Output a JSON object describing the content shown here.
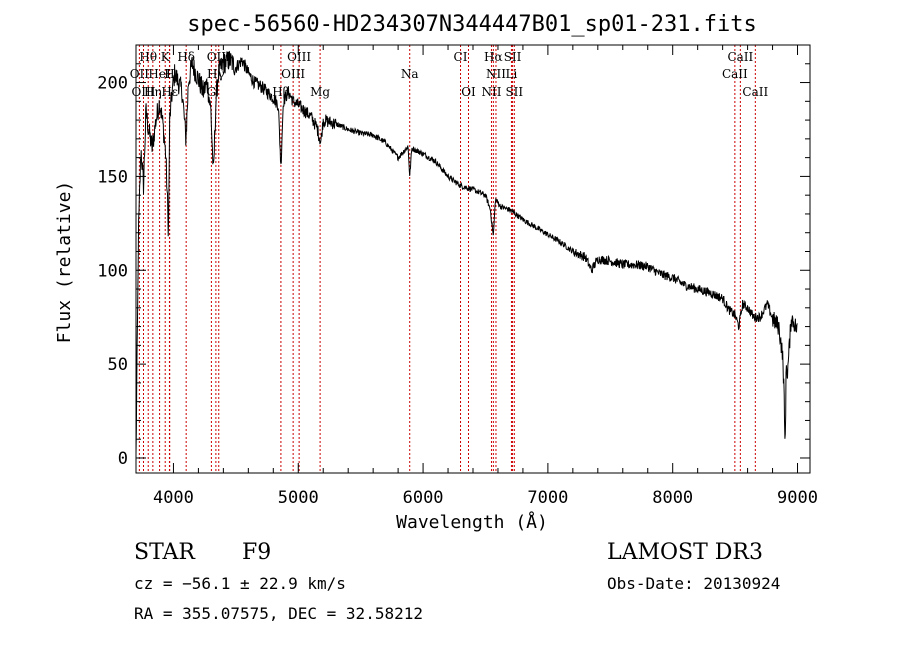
{
  "chart_data": {
    "type": "line",
    "title": "spec-56560-HD234307N344447B01_sp01-231.fits",
    "xlabel": "Wavelength (Å)",
    "ylabel": "Flux (relative)",
    "xlim": [
      3700,
      9100
    ],
    "ylim": [
      -8,
      220
    ],
    "xticks": [
      4000,
      5000,
      6000,
      7000,
      8000,
      9000
    ],
    "yticks": [
      0,
      50,
      100,
      150,
      200
    ],
    "grid": false,
    "series": [
      {
        "name": "spectrum",
        "x": [
          3700,
          3720,
          3740,
          3760,
          3780,
          3800,
          3830,
          3860,
          3890,
          3920,
          3940,
          3960,
          3970,
          3990,
          4010,
          4040,
          4070,
          4100,
          4120,
          4150,
          4180,
          4210,
          4240,
          4270,
          4300,
          4320,
          4340,
          4360,
          4400,
          4450,
          4500,
          4550,
          4600,
          4650,
          4700,
          4750,
          4800,
          4840,
          4861,
          4880,
          4920,
          4960,
          5000,
          5050,
          5100,
          5150,
          5180,
          5200,
          5300,
          5400,
          5500,
          5600,
          5700,
          5800,
          5880,
          5893,
          5910,
          6000,
          6100,
          6200,
          6300,
          6400,
          6500,
          6540,
          6563,
          6580,
          6620,
          6700,
          6800,
          6900,
          7000,
          7100,
          7200,
          7300,
          7350,
          7400,
          7500,
          7600,
          7700,
          7800,
          7900,
          8000,
          8100,
          8200,
          8300,
          8400,
          8450,
          8500,
          8530,
          8560,
          8600,
          8650,
          8700,
          8760,
          8800,
          8850,
          8880,
          8890,
          8900,
          8910,
          8920,
          8950,
          9000
        ],
        "y": [
          0,
          120,
          165,
          145,
          185,
          175,
          165,
          180,
          190,
          175,
          160,
          120,
          180,
          195,
          205,
          200,
          195,
          170,
          200,
          210,
          205,
          200,
          195,
          200,
          185,
          150,
          190,
          205,
          210,
          212,
          208,
          212,
          205,
          200,
          198,
          195,
          192,
          188,
          155,
          190,
          195,
          190,
          188,
          185,
          182,
          176,
          168,
          180,
          178,
          175,
          173,
          172,
          168,
          160,
          166,
          150,
          165,
          162,
          158,
          150,
          145,
          143,
          140,
          132,
          118,
          138,
          134,
          132,
          127,
          123,
          119,
          115,
          110,
          107,
          100,
          106,
          105,
          103,
          103,
          102,
          98,
          96,
          92,
          90,
          88,
          85,
          79,
          76,
          70,
          82,
          80,
          75,
          75,
          82,
          74,
          70,
          55,
          40,
          5,
          50,
          45,
          75,
          68
        ]
      }
    ],
    "line_markers": [
      {
        "name": "Hθ",
        "x": 3798,
        "row": 0
      },
      {
        "name": "K",
        "x": 3934,
        "row": 0
      },
      {
        "name": "Hδ",
        "x": 4102,
        "row": 0
      },
      {
        "name": "OIII",
        "x": 4363,
        "row": 0
      },
      {
        "name": "OIII",
        "x": 5007,
        "row": 0
      },
      {
        "name": "CI",
        "x": 6300,
        "row": 0
      },
      {
        "name": "Hα",
        "x": 6563,
        "row": 0
      },
      {
        "name": "SII",
        "x": 6717,
        "row": 0
      },
      {
        "name": "CaII",
        "x": 8542,
        "row": 0
      },
      {
        "name": "OII",
        "x": 3727,
        "row": 1
      },
      {
        "name": "HeI",
        "x": 3889,
        "row": 1
      },
      {
        "name": "H",
        "x": 3968,
        "row": 1
      },
      {
        "name": "Hγ",
        "x": 4340,
        "row": 1
      },
      {
        "name": "OIII",
        "x": 4959,
        "row": 1
      },
      {
        "name": "Na",
        "x": 5893,
        "row": 1
      },
      {
        "name": "NII",
        "x": 6584,
        "row": 1
      },
      {
        "name": "Li",
        "x": 6708,
        "row": 1
      },
      {
        "name": "CaII",
        "x": 8498,
        "row": 1
      },
      {
        "name": "OIII",
        "x": 3760,
        "row": 2
      },
      {
        "name": "Hη",
        "x": 3835,
        "row": 2
      },
      {
        "name": "Hε",
        "x": 3970,
        "row": 2
      },
      {
        "name": "G",
        "x": 4304,
        "row": 2
      },
      {
        "name": "Hβ",
        "x": 4861,
        "row": 2
      },
      {
        "name": "Mg",
        "x": 5175,
        "row": 2
      },
      {
        "name": "OI",
        "x": 6364,
        "row": 2
      },
      {
        "name": "NII",
        "x": 6548,
        "row": 2
      },
      {
        "name": "SII",
        "x": 6731,
        "row": 2
      },
      {
        "name": "CaII",
        "x": 8662,
        "row": 2
      }
    ]
  },
  "info": {
    "class_label": "STAR",
    "subclass": "F9",
    "survey": "LAMOST DR3",
    "cz": "cz = −56.1 ± 22.9 km/s",
    "obs_date": "Obs-Date: 20130924",
    "radec": "RA = 355.07575, DEC =  32.58212"
  },
  "colors": {
    "spectrum": "#000000",
    "marker": "#cc0000",
    "axes": "#000000"
  }
}
